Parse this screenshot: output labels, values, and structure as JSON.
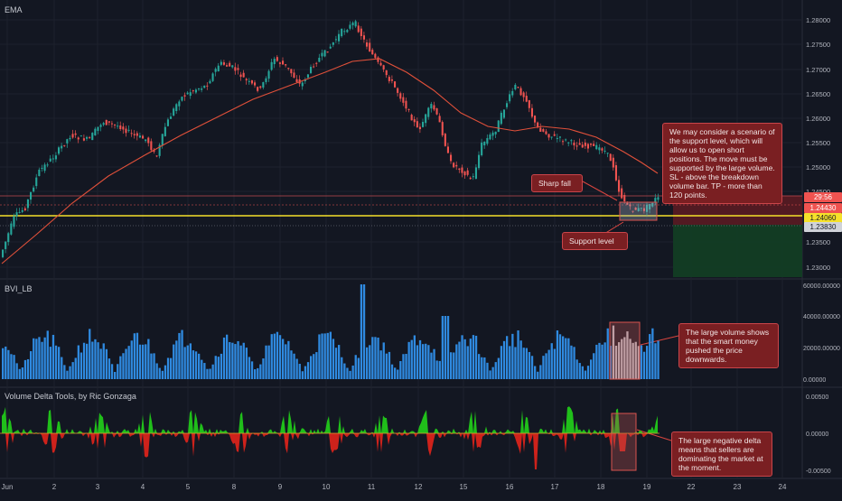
{
  "panes": {
    "price": {
      "label": "EMA"
    },
    "volume": {
      "label": "BVI_LB"
    },
    "delta": {
      "label": "Volume Delta Tools, by Ric Gonzaga"
    }
  },
  "axes": {
    "price_ticks": [
      "1.28000",
      "1.27500",
      "1.27000",
      "1.26500",
      "1.26000",
      "1.25500",
      "1.25000",
      "1.24500",
      "1.23500",
      "1.23000"
    ],
    "volume_ticks": [
      "60000.00000",
      "40000.00000",
      "20000.00000",
      "0.00000"
    ],
    "delta_ticks": [
      "0.00500",
      "0.00000",
      "-0.00500"
    ],
    "time_ticks": [
      "Jun",
      "2",
      "3",
      "4",
      "5",
      "8",
      "9",
      "10",
      "11",
      "12",
      "15",
      "16",
      "17",
      "18",
      "19",
      "22",
      "23",
      "24"
    ]
  },
  "price_tags": {
    "current": "29:56",
    "level1": "1.24430",
    "level2": "1.24060",
    "level3": "1.23830"
  },
  "annotations": {
    "scenario": "We may consider a scenario of the support level, which will allow us to open short positions. The move must be supported by the large volume. SL - above the breakdown volume bar. TP - more than 120 points.",
    "sharp_fall": "Sharp fall",
    "support_level": "Support level",
    "large_volume": "The large volume shows that the smart money pushed the price downwards.",
    "negative_delta": "The large negative delta means that sellers are dominating the market at the moment."
  },
  "colors": {
    "background": "#131722",
    "up_candle": "#26a69a",
    "down_candle": "#ef5350",
    "ema": "#e0503a",
    "support": "#f5e12a",
    "volume": "#2f8ae0",
    "delta_pos": "#22d11a",
    "delta_neg": "#e3231b",
    "stop_zone": "#5a1b22",
    "target_zone": "#123d24"
  }
}
